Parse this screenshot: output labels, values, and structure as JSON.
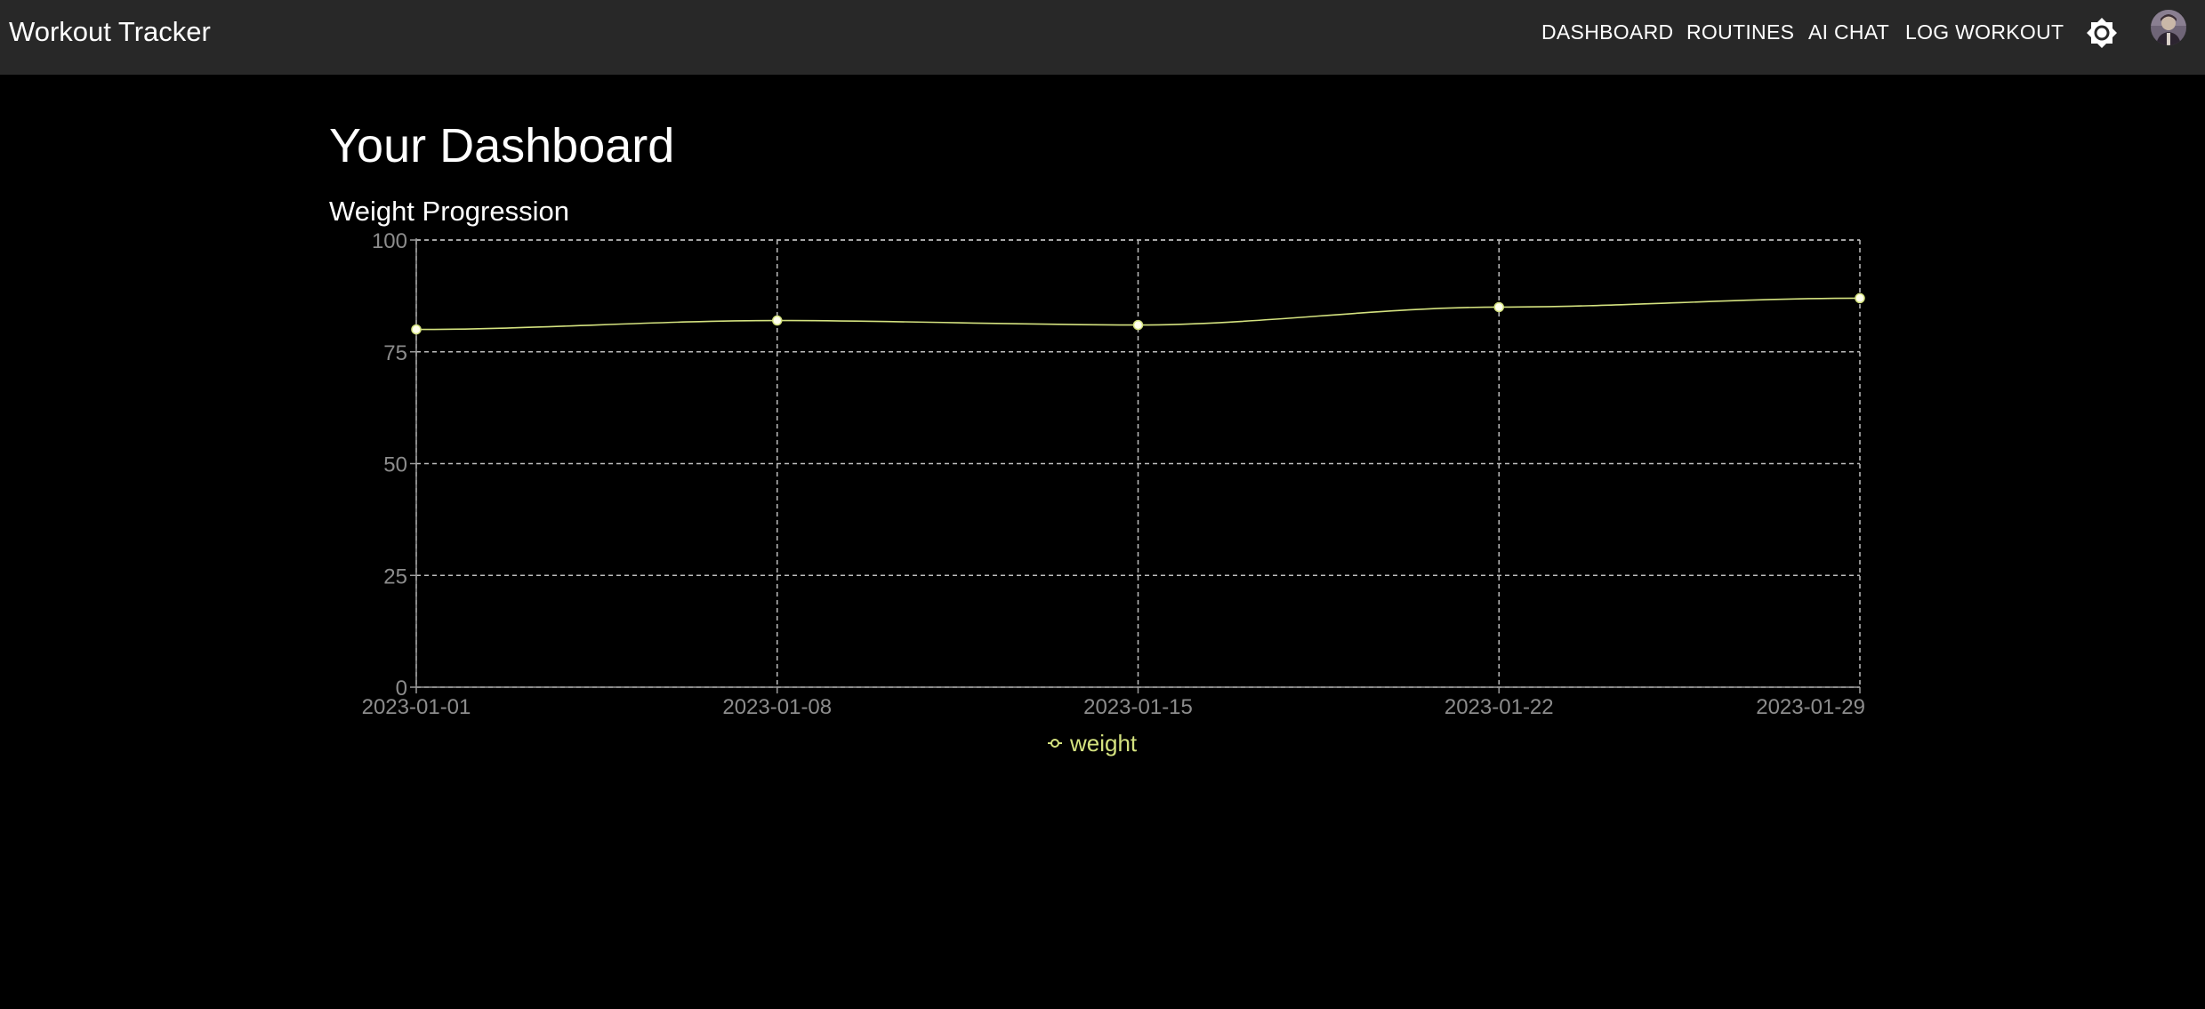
{
  "app": {
    "title": "Workout Tracker"
  },
  "nav": {
    "items": [
      {
        "label": "DASHBOARD"
      },
      {
        "label": "ROUTINES"
      },
      {
        "label": "AI CHAT"
      },
      {
        "label": "LOG WORKOUT"
      }
    ],
    "theme_toggle_icon": "brightness-icon",
    "avatar_icon": "user-avatar"
  },
  "page": {
    "title": "Your Dashboard",
    "section_title": "Weight Progression"
  },
  "colors": {
    "appbar": "#282828",
    "background": "#000000",
    "series": "#d4e27f",
    "grid": "#bdbdbd",
    "tick_text": "#8c8c8c"
  },
  "chart_data": {
    "type": "line",
    "title": "Weight Progression",
    "x": [
      "2023-01-01",
      "2023-01-08",
      "2023-01-15",
      "2023-01-22",
      "2023-01-29"
    ],
    "series": [
      {
        "name": "weight",
        "values": [
          80,
          82,
          81,
          85,
          87
        ]
      }
    ],
    "ylim": [
      0,
      100
    ],
    "yticks": [
      0,
      25,
      50,
      75,
      100
    ],
    "grid": true,
    "legend": "bottom-center"
  }
}
